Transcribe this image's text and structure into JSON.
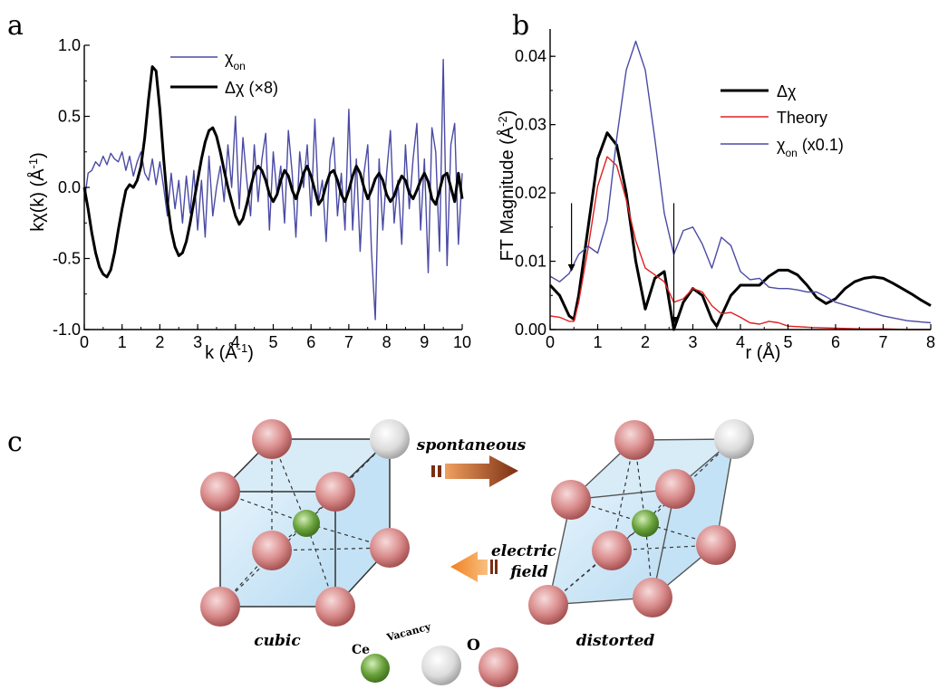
{
  "panels": {
    "a": "a",
    "b": "b",
    "c": "c"
  },
  "colors": {
    "delta_chi": "#000000",
    "chi_on": "#4a4aa5",
    "theory": "#e02020",
    "o_atom": "#d98b8b",
    "vacancy_atom": "#dcdcdc",
    "ce_atom": "#6aa23c",
    "cell_fill": "#cfe6f6",
    "arrow_forward": "#8b3a1a",
    "arrow_back": "#f0801e"
  },
  "chart_data": [
    {
      "id": "a",
      "type": "line",
      "xlabel": "k (Å",
      "xlabel_sup": "-1",
      "xlabel_end": ")",
      "ylabel": "kχ(k) (Å",
      "ylabel_sup": "-1",
      "ylabel_end": ")",
      "xlim": [
        0,
        10
      ],
      "ylim": [
        -1.0,
        1.0
      ],
      "xticks": [
        "0",
        "1",
        "2",
        "3",
        "4",
        "5",
        "6",
        "7",
        "8",
        "9",
        "10"
      ],
      "yticks": [
        "-1.0",
        "-0.5",
        "0.0",
        "0.5",
        "1.0"
      ],
      "legend_position": "top-center",
      "series": [
        {
          "key": "chi_on",
          "name": "χ",
          "name_sub": "on",
          "color": "#4a4aa5",
          "x": [
            0,
            0.1,
            0.2,
            0.3,
            0.4,
            0.5,
            0.6,
            0.7,
            0.8,
            0.9,
            1.0,
            1.1,
            1.2,
            1.3,
            1.4,
            1.5,
            1.6,
            1.7,
            1.8,
            1.9,
            2.0,
            2.1,
            2.2,
            2.3,
            2.4,
            2.5,
            2.6,
            2.7,
            2.8,
            2.9,
            3.0,
            3.1,
            3.2,
            3.3,
            3.4,
            3.5,
            3.6,
            3.7,
            3.8,
            3.9,
            4.0,
            4.1,
            4.2,
            4.3,
            4.4,
            4.5,
            4.6,
            4.7,
            4.8,
            4.9,
            5.0,
            5.1,
            5.2,
            5.3,
            5.4,
            5.5,
            5.6,
            5.7,
            5.8,
            5.9,
            6.0,
            6.1,
            6.2,
            6.3,
            6.4,
            6.5,
            6.6,
            6.7,
            6.8,
            6.9,
            7.0,
            7.1,
            7.2,
            7.3,
            7.4,
            7.5,
            7.6,
            7.7,
            7.8,
            7.9,
            8.0,
            8.1,
            8.2,
            8.3,
            8.4,
            8.5,
            8.6,
            8.7,
            8.8,
            8.9,
            9.0,
            9.1,
            9.2,
            9.3,
            9.4,
            9.5,
            9.6,
            9.7,
            9.8,
            9.9,
            10.0
          ],
          "y": [
            -0.1,
            0.1,
            0.12,
            0.18,
            0.15,
            0.22,
            0.16,
            0.24,
            0.2,
            0.18,
            0.25,
            0.12,
            0.22,
            0.08,
            0.18,
            0.25,
            0.1,
            0.05,
            0.2,
            0.02,
            0.18,
            0.0,
            -0.2,
            0.1,
            -0.15,
            0.05,
            -0.25,
            0.08,
            -0.18,
            0.12,
            -0.3,
            0.05,
            -0.35,
            0.22,
            -0.2,
            0.0,
            0.15,
            -0.1,
            0.3,
            0.0,
            0.5,
            -0.15,
            0.35,
            0.05,
            -0.2,
            0.3,
            -0.1,
            0.2,
            0.38,
            -0.3,
            0.25,
            -0.05,
            0.15,
            -0.25,
            0.4,
            0.1,
            -0.35,
            0.25,
            0.0,
            0.3,
            -0.2,
            0.48,
            -0.1,
            0.05,
            -0.38,
            0.2,
            0.35,
            -0.2,
            0.1,
            -0.3,
            0.55,
            -0.3,
            0.2,
            -0.45,
            0.1,
            0.3,
            -0.45,
            -0.93,
            0.2,
            -0.3,
            0.1,
            0.4,
            -0.25,
            0.05,
            -0.4,
            0.3,
            -0.15,
            0.2,
            0.45,
            -0.3,
            0.2,
            -0.6,
            0.42,
            0.25,
            -0.45,
            0.9,
            -0.55,
            0.3,
            0.45,
            -0.4,
            0.1
          ]
        },
        {
          "key": "delta_chi",
          "name": "Δχ (×8)",
          "color": "#000000",
          "x": [
            0,
            0.1,
            0.2,
            0.3,
            0.4,
            0.5,
            0.6,
            0.7,
            0.8,
            0.9,
            1.0,
            1.1,
            1.2,
            1.3,
            1.4,
            1.5,
            1.6,
            1.7,
            1.8,
            1.9,
            2.0,
            2.1,
            2.2,
            2.3,
            2.4,
            2.5,
            2.6,
            2.7,
            2.8,
            2.9,
            3.0,
            3.1,
            3.2,
            3.3,
            3.4,
            3.5,
            3.6,
            3.7,
            3.8,
            3.9,
            4.0,
            4.1,
            4.2,
            4.3,
            4.4,
            4.5,
            4.6,
            4.7,
            4.8,
            4.9,
            5.0,
            5.1,
            5.2,
            5.3,
            5.4,
            5.5,
            5.6,
            5.7,
            5.8,
            5.9,
            6.0,
            6.1,
            6.2,
            6.3,
            6.4,
            6.5,
            6.6,
            6.7,
            6.8,
            6.9,
            7.0,
            7.1,
            7.2,
            7.3,
            7.4,
            7.5,
            7.6,
            7.7,
            7.8,
            7.9,
            8.0,
            8.1,
            8.2,
            8.3,
            8.4,
            8.5,
            8.6,
            8.7,
            8.8,
            8.9,
            9.0,
            9.1,
            9.2,
            9.3,
            9.4,
            9.5,
            9.6,
            9.7,
            9.8,
            9.9,
            10.0
          ],
          "y": [
            0.0,
            -0.15,
            -0.32,
            -0.46,
            -0.56,
            -0.61,
            -0.63,
            -0.58,
            -0.46,
            -0.3,
            -0.15,
            -0.02,
            0.02,
            0.0,
            0.05,
            0.15,
            0.35,
            0.62,
            0.85,
            0.82,
            0.55,
            0.2,
            -0.1,
            -0.3,
            -0.42,
            -0.48,
            -0.46,
            -0.38,
            -0.25,
            -0.1,
            0.05,
            0.2,
            0.32,
            0.4,
            0.42,
            0.36,
            0.25,
            0.12,
            0.0,
            -0.1,
            -0.2,
            -0.26,
            -0.22,
            -0.12,
            0.0,
            0.1,
            0.15,
            0.12,
            0.05,
            -0.05,
            -0.1,
            -0.05,
            0.05,
            0.12,
            0.08,
            -0.02,
            -0.08,
            0.0,
            0.1,
            0.15,
            0.08,
            -0.02,
            -0.12,
            -0.08,
            0.02,
            0.1,
            0.12,
            0.05,
            -0.05,
            -0.1,
            -0.02,
            0.08,
            0.15,
            0.1,
            0.0,
            -0.08,
            -0.02,
            0.06,
            0.1,
            0.05,
            -0.05,
            -0.1,
            -0.06,
            0.02,
            0.08,
            0.05,
            -0.04,
            -0.08,
            -0.02,
            0.05,
            0.1,
            0.04,
            -0.08,
            -0.12,
            -0.02,
            0.08,
            0.1,
            0.0,
            -0.1,
            0.1,
            -0.08
          ]
        }
      ]
    },
    {
      "id": "b",
      "type": "line",
      "xlabel": "r (Å)",
      "ylabel": "FT Magnitude (Å",
      "ylabel_sup": "-2",
      "ylabel_end": ")",
      "xlim": [
        0,
        8
      ],
      "ylim": [
        0,
        0.044
      ],
      "xticks": [
        "0",
        "1",
        "2",
        "3",
        "4",
        "5",
        "6",
        "7",
        "8"
      ],
      "yticks": [
        "0.00",
        "0.01",
        "0.02",
        "0.03",
        "0.04"
      ],
      "legend_position": "top-right",
      "annotations": [
        {
          "type": "arrow-down",
          "x": 0.45,
          "y_from": 0.0185,
          "y_to": 0.0085
        },
        {
          "type": "arrow-down",
          "x": 2.6,
          "y_from": 0.0185,
          "y_to": 0.0008
        }
      ],
      "series": [
        {
          "key": "delta_chi",
          "name": "Δχ",
          "color": "#000000",
          "x": [
            0,
            0.2,
            0.4,
            0.5,
            0.6,
            0.8,
            1.0,
            1.2,
            1.4,
            1.6,
            1.8,
            2.0,
            2.2,
            2.4,
            2.6,
            2.8,
            3.0,
            3.2,
            3.4,
            3.5,
            3.6,
            3.8,
            4.0,
            4.2,
            4.4,
            4.6,
            4.8,
            5.0,
            5.2,
            5.4,
            5.6,
            5.8,
            6.0,
            6.2,
            6.4,
            6.6,
            6.8,
            7.0,
            7.2,
            7.4,
            7.6,
            7.8,
            8.0
          ],
          "y": [
            0.0065,
            0.005,
            0.002,
            0.0015,
            0.005,
            0.015,
            0.025,
            0.0288,
            0.027,
            0.02,
            0.01,
            0.003,
            0.0075,
            0.0085,
            0.0,
            0.004,
            0.006,
            0.005,
            0.0015,
            0.0005,
            0.002,
            0.005,
            0.0065,
            0.0065,
            0.0065,
            0.0078,
            0.0087,
            0.0087,
            0.008,
            0.0065,
            0.0047,
            0.0038,
            0.0045,
            0.006,
            0.007,
            0.0075,
            0.0077,
            0.0075,
            0.0068,
            0.006,
            0.0052,
            0.0043,
            0.0035
          ]
        },
        {
          "key": "theory",
          "name": "Theory",
          "color": "#e02020",
          "x": [
            0,
            0.2,
            0.4,
            0.5,
            0.6,
            0.8,
            1.0,
            1.2,
            1.4,
            1.6,
            1.8,
            2.0,
            2.2,
            2.4,
            2.6,
            2.8,
            3.0,
            3.2,
            3.4,
            3.6,
            3.8,
            4.0,
            4.2,
            4.4,
            4.6,
            4.8,
            5.0,
            5.5,
            6.0,
            6.5,
            7.0,
            7.5,
            8.0
          ],
          "y": [
            0.002,
            0.0018,
            0.0012,
            0.0012,
            0.004,
            0.012,
            0.021,
            0.0253,
            0.024,
            0.019,
            0.013,
            0.009,
            0.008,
            0.007,
            0.004,
            0.0045,
            0.006,
            0.0055,
            0.0035,
            0.0023,
            0.0025,
            0.0018,
            0.001,
            0.0008,
            0.0012,
            0.001,
            0.0005,
            0.0003,
            0.0002,
            0.0001,
            0.0001,
            0.0,
            0.0
          ]
        },
        {
          "key": "chi_on",
          "name": "χ",
          "name_sub": "on",
          "name_suffix": " (x0.1)",
          "color": "#4a4aa5",
          "x": [
            0,
            0.2,
            0.4,
            0.6,
            0.8,
            1.0,
            1.2,
            1.4,
            1.6,
            1.8,
            2.0,
            2.2,
            2.4,
            2.6,
            2.8,
            3.0,
            3.2,
            3.4,
            3.6,
            3.8,
            4.0,
            4.2,
            4.4,
            4.6,
            4.8,
            5.0,
            5.2,
            5.4,
            5.6,
            5.8,
            6.0,
            6.5,
            7.0,
            7.5,
            8.0
          ],
          "y": [
            0.0078,
            0.007,
            0.0082,
            0.011,
            0.0122,
            0.0112,
            0.016,
            0.028,
            0.038,
            0.0422,
            0.038,
            0.028,
            0.017,
            0.011,
            0.0145,
            0.015,
            0.0125,
            0.009,
            0.0135,
            0.0123,
            0.0085,
            0.0073,
            0.0075,
            0.0062,
            0.006,
            0.006,
            0.0058,
            0.0055,
            0.0055,
            0.0048,
            0.004,
            0.003,
            0.002,
            0.0013,
            0.001
          ]
        }
      ]
    }
  ],
  "diagram": {
    "cubic_label": "cubic",
    "distorted_label": "distorted",
    "arrow_top_label": "spontaneous",
    "arrow_bottom_label_line1": "electric",
    "arrow_bottom_label_line2": "field",
    "legend": {
      "ce": "Ce",
      "vacancy": "Vacancy",
      "o": "O"
    }
  }
}
